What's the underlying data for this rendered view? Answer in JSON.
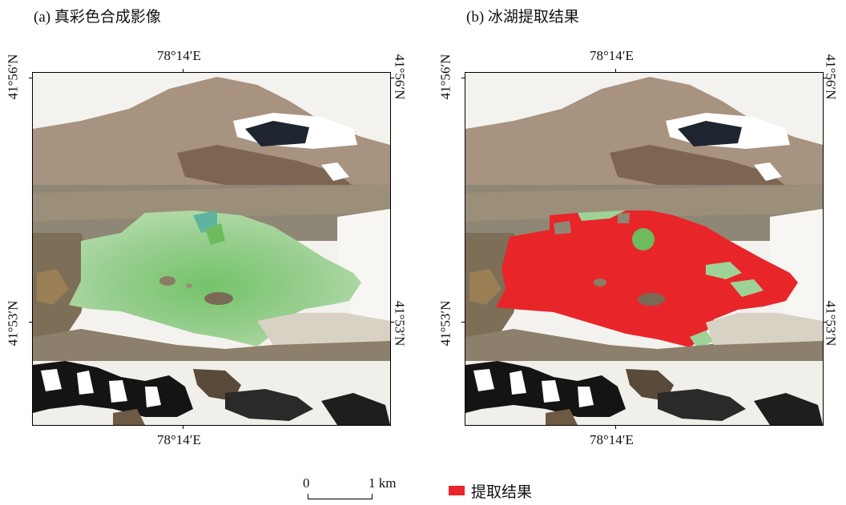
{
  "panels": [
    {
      "title": "(a) 真彩色合成影像",
      "top_label": "78°14′E",
      "bottom_label": "78°14′E",
      "left_labels": [
        "41°56′N",
        "41°53′N"
      ],
      "right_labels": [
        "41°56′N",
        "41°53′N"
      ]
    },
    {
      "title": "(b) 冰湖提取结果",
      "top_label": "78°14′E",
      "bottom_label": "78°14′E",
      "left_labels": [
        "41°56′N",
        "41°53′N"
      ],
      "right_labels": [
        "41°56′N",
        "41°53′N"
      ]
    }
  ],
  "scale_bar": {
    "start": "0",
    "end": "1 km"
  },
  "legend": {
    "label": "提取结果",
    "color": "#e8262a"
  },
  "colors": {
    "lake_green": "#9fd296",
    "terrain_brown": "#9e8c73",
    "snow": "#ffffff",
    "extraction_red": "#e8262a"
  }
}
